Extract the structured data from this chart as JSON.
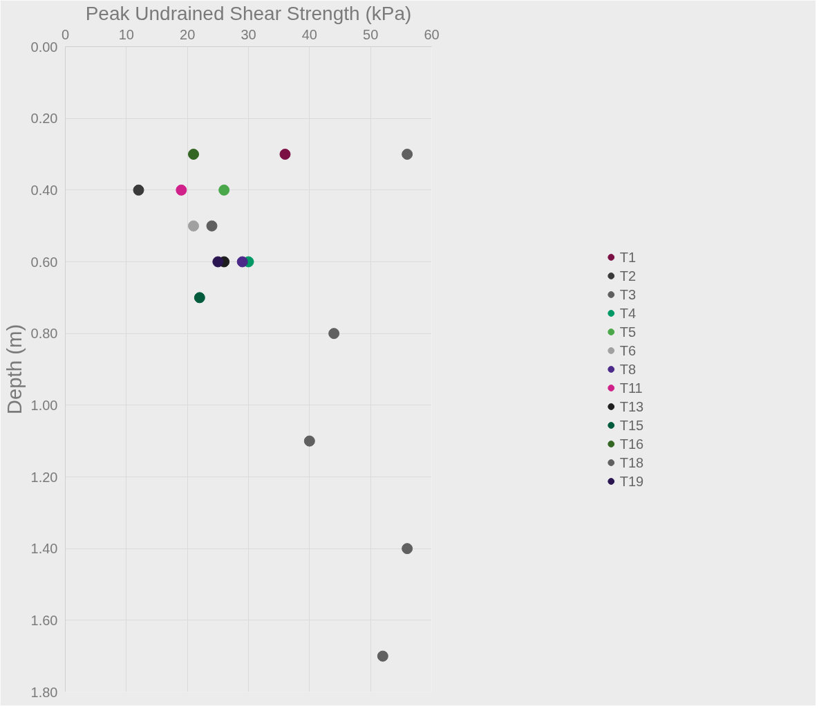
{
  "chart_data": {
    "type": "scatter",
    "xlabel": "Peak Undrained Shear Strength (kPa)",
    "ylabel": "Depth (m)",
    "xlim": [
      0,
      60
    ],
    "xticks": [
      0,
      10,
      20,
      30,
      40,
      50,
      60
    ],
    "ylim": [
      1.8,
      0
    ],
    "yticks": [
      {
        "value": 0,
        "label": "0.00"
      },
      {
        "value": 0.2,
        "label": "0.20"
      },
      {
        "value": 0.4,
        "label": "0.40"
      },
      {
        "value": 0.6,
        "label": "0.60"
      },
      {
        "value": 0.8,
        "label": "0.80"
      },
      {
        "value": 1.0,
        "label": "1.00"
      },
      {
        "value": 1.2,
        "label": "1.20"
      },
      {
        "value": 1.4,
        "label": "1.40"
      },
      {
        "value": 1.6,
        "label": "1.60"
      },
      {
        "value": 1.8,
        "label": "1.80"
      }
    ],
    "grid": true,
    "legend": "right",
    "marker": "circle",
    "series": [
      {
        "name": "T1",
        "color": "#7b1045",
        "x": [
          36
        ],
        "values": [
          0.3
        ]
      },
      {
        "name": "T2",
        "color": "#3a3a3a",
        "x": [
          12
        ],
        "values": [
          0.4
        ]
      },
      {
        "name": "T3",
        "color": "#5f5f5f",
        "x": [
          24
        ],
        "values": [
          0.5
        ]
      },
      {
        "name": "T4",
        "color": "#009966",
        "x": [
          30
        ],
        "values": [
          0.6
        ]
      },
      {
        "name": "T5",
        "color": "#4aa84a",
        "x": [
          26
        ],
        "values": [
          0.4
        ]
      },
      {
        "name": "T6",
        "color": "#a0a0a0",
        "x": [
          21
        ],
        "values": [
          0.5
        ]
      },
      {
        "name": "T8",
        "color": "#4b2a8a",
        "x": [
          29
        ],
        "values": [
          0.6
        ]
      },
      {
        "name": "T11",
        "color": "#d0208a",
        "x": [
          19
        ],
        "values": [
          0.4
        ]
      },
      {
        "name": "T13",
        "color": "#1e1e1e",
        "x": [
          26
        ],
        "values": [
          0.6
        ]
      },
      {
        "name": "T15",
        "color": "#005a3c",
        "x": [
          22
        ],
        "values": [
          0.7
        ]
      },
      {
        "name": "T16",
        "color": "#336622",
        "x": [
          21
        ],
        "values": [
          0.3
        ]
      },
      {
        "name": "T18",
        "color": "#606060",
        "x": [
          56,
          44,
          40,
          56,
          52
        ],
        "values": [
          0.3,
          0.8,
          1.1,
          1.4,
          1.7
        ]
      },
      {
        "name": "T19",
        "color": "#2a1550",
        "x": [
          25
        ],
        "values": [
          0.6
        ]
      }
    ]
  }
}
